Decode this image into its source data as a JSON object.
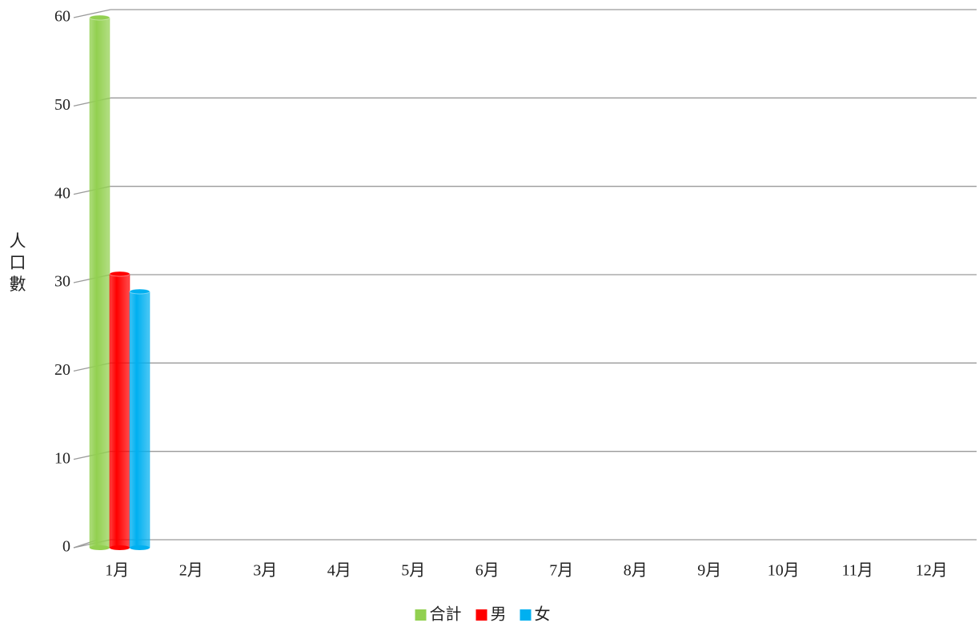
{
  "chart_data": {
    "type": "bar",
    "y_label": "人口數",
    "categories": [
      "1月",
      "2月",
      "3月",
      "4月",
      "5月",
      "6月",
      "7月",
      "8月",
      "9月",
      "10月",
      "11月",
      "12月"
    ],
    "series": [
      {
        "name": "合計",
        "color": "#92d050",
        "values": [
          60,
          null,
          null,
          null,
          null,
          null,
          null,
          null,
          null,
          null,
          null,
          null
        ]
      },
      {
        "name": "男",
        "color": "#ff0000",
        "values": [
          31,
          null,
          null,
          null,
          null,
          null,
          null,
          null,
          null,
          null,
          null,
          null
        ]
      },
      {
        "name": "女",
        "color": "#00b0f0",
        "values": [
          29,
          null,
          null,
          null,
          null,
          null,
          null,
          null,
          null,
          null,
          null,
          null
        ]
      }
    ],
    "ylim": [
      0,
      60
    ],
    "yticks": [
      0,
      10,
      20,
      30,
      40,
      50,
      60
    ],
    "grid": true,
    "legend": "bottom"
  }
}
